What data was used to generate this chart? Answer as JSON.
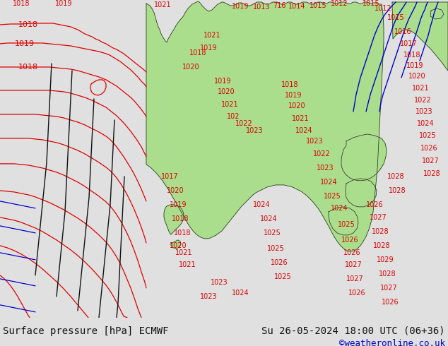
{
  "title_left": "Surface pressure [hPa] ECMWF",
  "title_right": "Su 26-05-2024 18:00 UTC (06+36)",
  "copyright": "©weatheronline.co.uk",
  "bg_color": "#e8e8e8",
  "land_color": "#aade8c",
  "sea_color": "#e0e0e0",
  "contour_color_red": "#dd0000",
  "contour_color_blue": "#0000cc",
  "contour_color_black": "#111111",
  "footer_bg": "#e0e0e0",
  "footer_text_color": "#111111",
  "copyright_color": "#0000cc",
  "font_size_footer": 10,
  "font_size_copyright": 9,
  "fig_width": 6.34,
  "fig_height": 4.9,
  "dpi": 100
}
